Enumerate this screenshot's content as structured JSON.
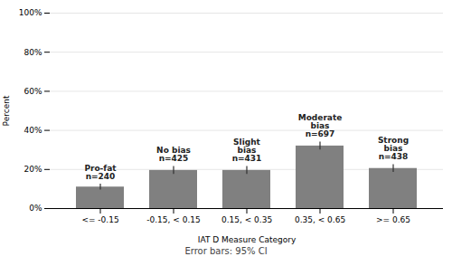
{
  "chart_data": {
    "type": "bar",
    "categories": [
      "<= -0.15",
      "-0.15, < 0.15",
      "0.15, < 0.35",
      "0.35, < 0.65",
      ">= 0.65"
    ],
    "values": [
      11.0,
      19.5,
      19.5,
      32.0,
      20.5
    ],
    "errors": [
      1.5,
      2.0,
      2.0,
      2.0,
      2.0
    ],
    "annotations": [
      "Pro-fat\nn=240",
      "No bias\nn=425",
      "Slight\nbias\nn=431",
      "Moderate\nbias\nn=697",
      "Strong\nbias\nn=438"
    ],
    "color": "#808080",
    "xlabel": "IAT D Measure Category",
    "ylabel": "Percent",
    "footnote": "Error bars: 95% CI",
    "ylim": [
      0,
      100
    ],
    "yticks": [
      {
        "value": 0,
        "label": "0%"
      },
      {
        "value": 20,
        "label": "20%"
      },
      {
        "value": 40,
        "label": "40%"
      },
      {
        "value": 60,
        "label": "60%"
      },
      {
        "value": 80,
        "label": "80%"
      },
      {
        "value": 100,
        "label": "100%"
      }
    ],
    "grid": true
  }
}
